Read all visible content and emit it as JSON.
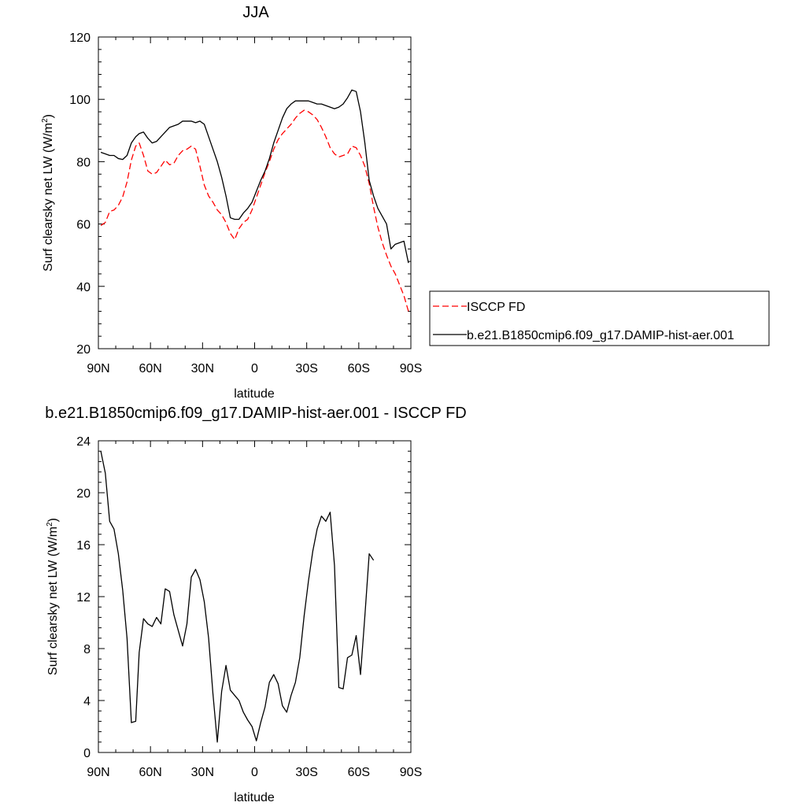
{
  "chart_data": [
    {
      "type": "line",
      "title": "JJA",
      "xlabel": "latitude",
      "ylabel": "Surf clearsky net LW (W/m",
      "ylabel_sup": "2",
      "ylabel_close": ")",
      "xlim": [
        90,
        -90
      ],
      "ylim": [
        20,
        120
      ],
      "x_ticks": [
        {
          "value": 90,
          "label": "90N"
        },
        {
          "value": 60,
          "label": "60N"
        },
        {
          "value": 30,
          "label": "30N"
        },
        {
          "value": 0,
          "label": "0"
        },
        {
          "value": -30,
          "label": "30S"
        },
        {
          "value": -60,
          "label": "60S"
        },
        {
          "value": -90,
          "label": "90S"
        }
      ],
      "y_ticks": [
        20,
        40,
        60,
        80,
        100,
        120
      ],
      "legend_position": "right",
      "series": [
        {
          "name": "ISCCP FD",
          "color": "#ff0000",
          "dash": "dashed",
          "points": [
            [
              88.6,
              59.5
            ],
            [
              86,
              60.5
            ],
            [
              83.5,
              64
            ],
            [
              81,
              64.5
            ],
            [
              78.5,
              66
            ],
            [
              76,
              68.7
            ],
            [
              73.5,
              73.5
            ],
            [
              71,
              80.5
            ],
            [
              68.5,
              85
            ],
            [
              66.5,
              86
            ],
            [
              64,
              82
            ],
            [
              61.5,
              77
            ],
            [
              59,
              76
            ],
            [
              56.5,
              76.5
            ],
            [
              54,
              78.5
            ],
            [
              51.5,
              80.5
            ],
            [
              49,
              79
            ],
            [
              46.5,
              79.5
            ],
            [
              44,
              82
            ],
            [
              41.5,
              83.5
            ],
            [
              39,
              84
            ],
            [
              36.5,
              85
            ],
            [
              34,
              84
            ],
            [
              31.5,
              78.5
            ],
            [
              29,
              72.5
            ],
            [
              26.5,
              69
            ],
            [
              24,
              67
            ],
            [
              21.5,
              64.5
            ],
            [
              19,
              63
            ],
            [
              16.5,
              60.5
            ],
            [
              14,
              57
            ],
            [
              11.5,
              55
            ],
            [
              9,
              58.5
            ],
            [
              6.5,
              60.5
            ],
            [
              4,
              61.5
            ],
            [
              1.5,
              64.5
            ],
            [
              -1,
              68.5
            ],
            [
              -3.5,
              72.5
            ],
            [
              -6,
              76.5
            ],
            [
              -8.5,
              80
            ],
            [
              -11,
              84
            ],
            [
              -13.5,
              87
            ],
            [
              -16,
              89
            ],
            [
              -18.5,
              90.5
            ],
            [
              -21,
              92
            ],
            [
              -23.5,
              94
            ],
            [
              -26,
              95.5
            ],
            [
              -28.5,
              96.5
            ],
            [
              -31,
              96
            ],
            [
              -33.5,
              95
            ],
            [
              -36,
              93.5
            ],
            [
              -38.5,
              91
            ],
            [
              -41,
              88
            ],
            [
              -43.5,
              84.5
            ],
            [
              -46,
              82.5
            ],
            [
              -48.5,
              81.5
            ],
            [
              -51,
              82
            ],
            [
              -53.5,
              82.5
            ],
            [
              -56,
              85
            ],
            [
              -58.5,
              84.5
            ],
            [
              -61,
              82
            ],
            [
              -63.5,
              78.5
            ],
            [
              -66,
              73
            ],
            [
              -68.5,
              65.5
            ],
            [
              -71,
              59
            ],
            [
              -73.5,
              54
            ],
            [
              -76,
              50
            ],
            [
              -78.5,
              46.5
            ],
            [
              -81,
              44
            ],
            [
              -83.5,
              40.5
            ],
            [
              -86,
              37
            ],
            [
              -88.6,
              32
            ]
          ]
        },
        {
          "name": "b.e21.B1850cmip6.f09_g17.DAMIP-hist-aer.001",
          "color": "#000000",
          "dash": "solid",
          "points": [
            [
              88.6,
              83
            ],
            [
              86,
              82.5
            ],
            [
              83.5,
              82
            ],
            [
              81,
              82
            ],
            [
              78.5,
              81
            ],
            [
              76,
              80.7
            ],
            [
              73.5,
              82
            ],
            [
              71,
              86
            ],
            [
              68.5,
              88
            ],
            [
              66.5,
              89
            ],
            [
              64,
              89.5
            ],
            [
              61.5,
              87.5
            ],
            [
              59,
              86
            ],
            [
              56.5,
              86.5
            ],
            [
              54,
              88
            ],
            [
              51.5,
              89.5
            ],
            [
              49,
              91
            ],
            [
              46.5,
              91.5
            ],
            [
              44,
              92
            ],
            [
              41.5,
              93
            ],
            [
              39,
              93
            ],
            [
              36.5,
              93
            ],
            [
              34,
              92.5
            ],
            [
              31.5,
              93
            ],
            [
              29,
              92
            ],
            [
              26.5,
              88
            ],
            [
              24,
              84
            ],
            [
              21.5,
              80
            ],
            [
              19,
              75
            ],
            [
              16.5,
              69
            ],
            [
              14,
              62
            ],
            [
              11.5,
              61.5
            ],
            [
              9,
              61.5
            ],
            [
              6.5,
              63.5
            ],
            [
              4,
              65
            ],
            [
              1.5,
              67
            ],
            [
              -1,
              70.5
            ],
            [
              -3.5,
              74
            ],
            [
              -6,
              77
            ],
            [
              -8.5,
              81
            ],
            [
              -11,
              86
            ],
            [
              -13.5,
              90
            ],
            [
              -16,
              94
            ],
            [
              -18.5,
              97
            ],
            [
              -21,
              98.5
            ],
            [
              -23.5,
              99.5
            ],
            [
              -26,
              99.5
            ],
            [
              -28.5,
              99.5
            ],
            [
              -31,
              99.5
            ],
            [
              -33.5,
              99
            ],
            [
              -36,
              98.5
            ],
            [
              -38.5,
              98.5
            ],
            [
              -41,
              98
            ],
            [
              -43.5,
              97.5
            ],
            [
              -46,
              97
            ],
            [
              -48.5,
              97.5
            ],
            [
              -51,
              98.5
            ],
            [
              -53.5,
              100.5
            ],
            [
              -56,
              103
            ],
            [
              -58.5,
              102.5
            ],
            [
              -61,
              96
            ],
            [
              -63.5,
              86
            ],
            [
              -66,
              74
            ],
            [
              -68.5,
              69
            ],
            [
              -71,
              65
            ],
            [
              -73.5,
              62.5
            ],
            [
              -76,
              60
            ],
            [
              -78.5,
              52
            ],
            [
              -81,
              53.5
            ],
            [
              -83.5,
              54
            ],
            [
              -86,
              54.5
            ],
            [
              -88.6,
              47.5
            ]
          ]
        }
      ]
    },
    {
      "type": "line",
      "title": "b.e21.B1850cmip6.f09_g17.DAMIP-hist-aer.001 - ISCCP FD",
      "xlabel": "latitude",
      "ylabel": "Surf clearsky net LW (W/m",
      "ylabel_sup": "2",
      "ylabel_close": ")",
      "xlim": [
        90,
        -90
      ],
      "ylim": [
        0,
        24
      ],
      "x_ticks": [
        {
          "value": 90,
          "label": "90N"
        },
        {
          "value": 60,
          "label": "60N"
        },
        {
          "value": 30,
          "label": "30N"
        },
        {
          "value": 0,
          "label": "0"
        },
        {
          "value": -30,
          "label": "30S"
        },
        {
          "value": -60,
          "label": "60S"
        },
        {
          "value": -90,
          "label": "90S"
        }
      ],
      "y_ticks": [
        0,
        4,
        8,
        12,
        16,
        20,
        24
      ],
      "series": [
        {
          "color": "#000000",
          "dash": "solid",
          "points": [
            [
              88.6,
              23.2
            ],
            [
              86,
              21.5
            ],
            [
              83.5,
              17.8
            ],
            [
              81,
              17.2
            ],
            [
              78.5,
              15.3
            ],
            [
              76,
              12.5
            ],
            [
              73.5,
              8.8
            ],
            [
              71,
              2.3
            ],
            [
              68.5,
              2.4
            ],
            [
              66.5,
              7.7
            ],
            [
              64,
              10.3
            ],
            [
              61.5,
              9.9
            ],
            [
              59,
              9.7
            ],
            [
              56.5,
              10.4
            ],
            [
              54,
              9.9
            ],
            [
              51.5,
              12.6
            ],
            [
              49,
              12.4
            ],
            [
              46.5,
              10.6
            ],
            [
              44,
              9.4
            ],
            [
              41.5,
              8.2
            ],
            [
              39,
              9.9
            ],
            [
              36.5,
              13.5
            ],
            [
              34,
              14.1
            ],
            [
              31.5,
              13.3
            ],
            [
              29,
              11.6
            ],
            [
              26.5,
              8.8
            ],
            [
              24,
              4.5
            ],
            [
              21.5,
              0.8
            ],
            [
              19,
              4.7
            ],
            [
              16.5,
              6.7
            ],
            [
              14,
              4.8
            ],
            [
              11.5,
              4.4
            ],
            [
              9,
              4.0
            ],
            [
              6.5,
              3.1
            ],
            [
              4,
              2.5
            ],
            [
              1.5,
              2.0
            ],
            [
              -1,
              0.9
            ],
            [
              -3.5,
              2.3
            ],
            [
              -6,
              3.5
            ],
            [
              -8.5,
              5.4
            ],
            [
              -11,
              6.0
            ],
            [
              -13.5,
              5.3
            ],
            [
              -16,
              3.6
            ],
            [
              -18.5,
              3.1
            ],
            [
              -21,
              4.4
            ],
            [
              -23.5,
              5.4
            ],
            [
              -26,
              7.3
            ],
            [
              -28.5,
              10.5
            ],
            [
              -31,
              13.2
            ],
            [
              -33.5,
              15.5
            ],
            [
              -36,
              17.2
            ],
            [
              -38.5,
              18.2
            ],
            [
              -41,
              17.8
            ],
            [
              -43.5,
              18.5
            ],
            [
              -46,
              14.4
            ],
            [
              -48.5,
              5.0
            ],
            [
              -51,
              4.9
            ],
            [
              -53.5,
              7.3
            ],
            [
              -56,
              7.5
            ],
            [
              -58.5,
              9.0
            ],
            [
              -61,
              6.0
            ],
            [
              -63.5,
              10.5
            ],
            [
              -66,
              15.3
            ],
            [
              -68.5,
              14.8
            ]
          ]
        }
      ]
    }
  ]
}
